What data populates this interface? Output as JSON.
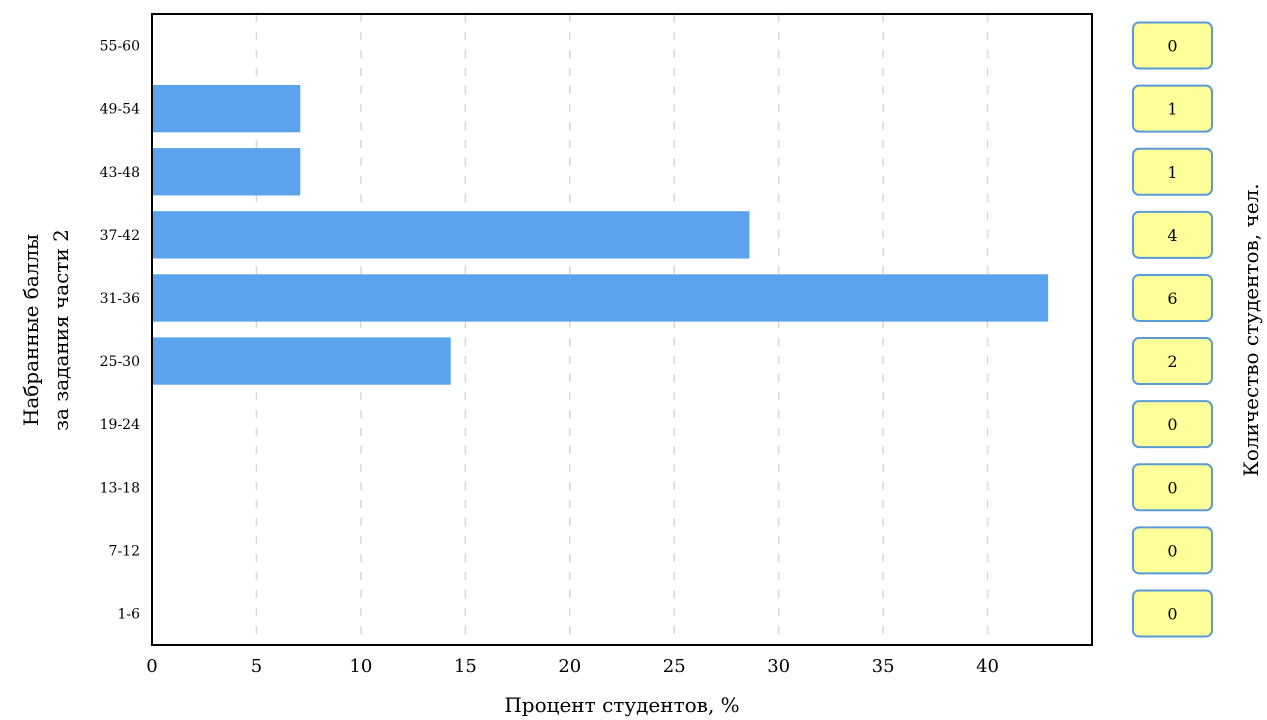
{
  "chart_data": {
    "type": "bar",
    "orientation": "horizontal",
    "categories": [
      "1-6",
      "7-12",
      "13-18",
      "19-24",
      "25-30",
      "31-36",
      "37-42",
      "43-48",
      "49-54",
      "55-60"
    ],
    "values": [
      0,
      0,
      0,
      0,
      14.3,
      42.9,
      28.6,
      7.1,
      7.1,
      0
    ],
    "counts": [
      0,
      0,
      0,
      0,
      2,
      6,
      4,
      1,
      1,
      0
    ],
    "xlabel": "Процент студентов, %",
    "ylabel_line1": "Набранные баллы",
    "ylabel_line2": "за задания части 2",
    "right_label": "Количество студентов, чел.",
    "xlim": [
      0,
      45
    ],
    "xticks": [
      0,
      5,
      10,
      15,
      20,
      25,
      30,
      35,
      40
    ],
    "grid": "vertical dashed",
    "bar_color": "#5ba3ec"
  }
}
